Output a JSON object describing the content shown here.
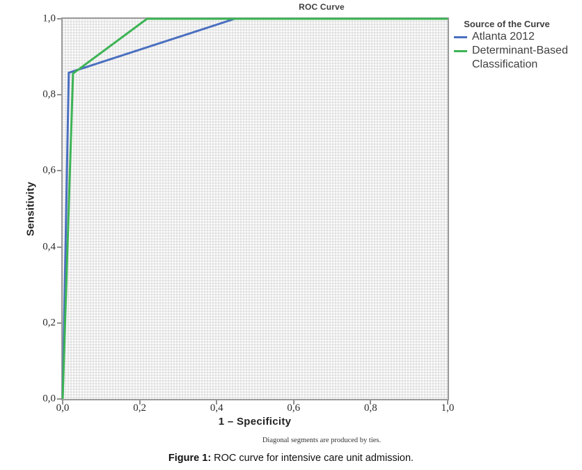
{
  "chart_data": {
    "type": "line",
    "title": "ROC Curve",
    "xlabel": "1 – Specificity",
    "ylabel": "Sensitivity",
    "xlim": [
      0,
      1
    ],
    "ylim": [
      0,
      1
    ],
    "x_ticks": [
      "0,0",
      "0,2",
      "0,4",
      "0,6",
      "0,8",
      "1,0"
    ],
    "y_ticks": [
      "1,0",
      "0,8",
      "0,6",
      "0,4",
      "0,2",
      "0,0"
    ],
    "grid": "dotted background fill, no gridlines",
    "axis_color": "#8f8f8f",
    "footnote": "Diagonal segments are produced by ties.",
    "legend": {
      "title": "Source of the Curve",
      "position": "right",
      "entries": [
        {
          "label": "Atlanta 2012",
          "color": "#4a6fc0"
        },
        {
          "label": "Determinant-Based Classification",
          "color": "#3cb455"
        }
      ]
    },
    "series": [
      {
        "name": "Atlanta 2012",
        "color": "#4a6fc0",
        "points": [
          [
            0,
            0
          ],
          [
            0.016,
            0.858
          ],
          [
            0.447,
            1.0
          ],
          [
            1.0,
            1.0
          ]
        ]
      },
      {
        "name": "Determinant-Based Classification",
        "color": "#3cb455",
        "points": [
          [
            0,
            0
          ],
          [
            0.027,
            0.856
          ],
          [
            0.219,
            1.0
          ],
          [
            1.0,
            1.0
          ]
        ]
      }
    ]
  },
  "caption": {
    "prefix": "Figure 1:",
    "text": " ROC curve for intensive care unit admission."
  }
}
